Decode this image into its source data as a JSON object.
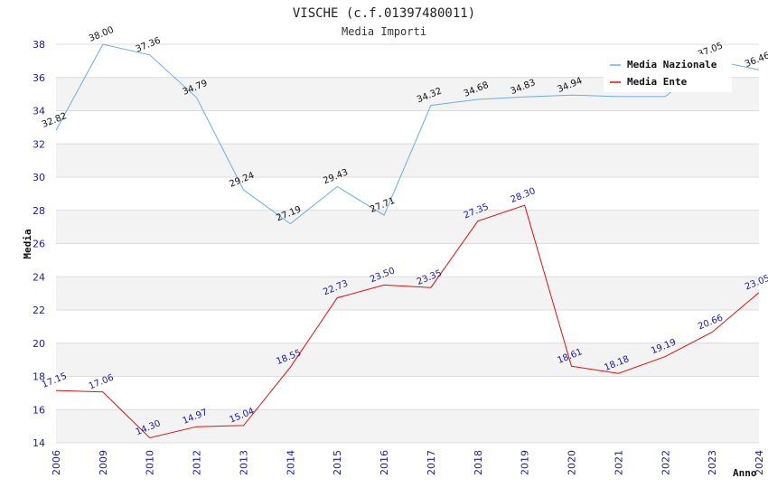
{
  "chart_data": {
    "type": "line",
    "title": "VISCHE (c.f.01397480011)",
    "subtitle": "Media Importi",
    "xlabel": "Anno",
    "ylabel": "Media",
    "ylim": [
      14,
      38
    ],
    "yticks": [
      14,
      16,
      18,
      20,
      22,
      24,
      26,
      28,
      30,
      32,
      34,
      36,
      38
    ],
    "categories": [
      "2006",
      "2009",
      "2010",
      "2012",
      "2013",
      "2014",
      "2015",
      "2016",
      "2017",
      "2018",
      "2019",
      "2020",
      "2021",
      "2022",
      "2023",
      "2024"
    ],
    "legend_position": "top-right",
    "series": [
      {
        "name": "Media Nazionale",
        "color": "#6aaee6",
        "values": [
          32.82,
          38.0,
          37.36,
          34.79,
          29.24,
          27.19,
          29.43,
          27.71,
          34.32,
          34.68,
          34.83,
          34.94,
          34.85,
          34.85,
          37.05,
          36.46
        ],
        "labels": [
          "32.82",
          "38.00",
          "37.36",
          "34.79",
          "29.24",
          "27.19",
          "29.43",
          "27.71",
          "34.32",
          "34.68",
          "34.83",
          "34.94",
          "",
          "",
          "37.05",
          "36.46"
        ]
      },
      {
        "name": "Media Ente",
        "color": "#e01010",
        "values": [
          17.15,
          17.06,
          14.3,
          14.97,
          15.04,
          18.55,
          22.73,
          23.5,
          23.35,
          27.35,
          28.3,
          18.61,
          18.18,
          19.19,
          20.66,
          23.05
        ],
        "labels": [
          "17.15",
          "17.06",
          "14.30",
          "14.97",
          "15.04",
          "18.55",
          "22.73",
          "23.50",
          "23.35",
          "27.35",
          "28.30",
          "18.61",
          "18.18",
          "19.19",
          "20.66",
          "23.05"
        ]
      }
    ]
  }
}
